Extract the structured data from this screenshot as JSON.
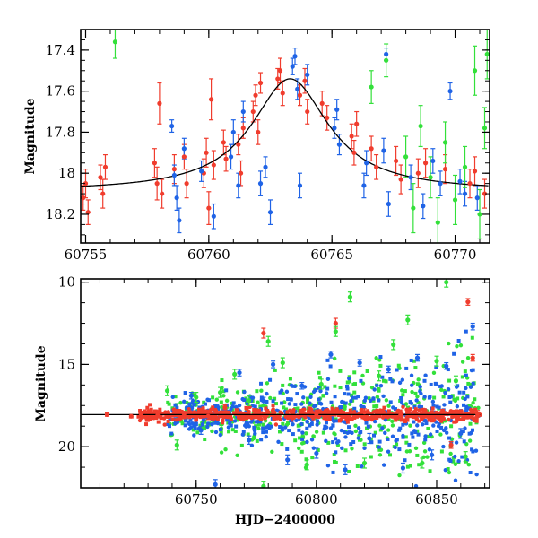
{
  "colors": {
    "red": "#f03c2d",
    "blue": "#1f63e6",
    "green": "#33e03a",
    "model": "#000000"
  },
  "chart_data": [
    {
      "type": "scatter",
      "title": "",
      "xlabel": "",
      "ylabel": "Magnitude",
      "xlim": [
        60754.8,
        60771.4
      ],
      "ylim": [
        18.34,
        17.3
      ],
      "y_inverted": true,
      "grid": false,
      "legend": "none",
      "xticks": [
        60755,
        60760,
        60765,
        60770
      ],
      "xtick_labels": [
        "60755",
        "60760",
        "60765",
        "60770"
      ],
      "yticks": [
        17.4,
        17.6,
        17.8,
        18,
        18.2
      ],
      "ytick_labels": [
        "17.4",
        "17.6",
        "17.8",
        "18",
        "18.2"
      ],
      "model_curve": {
        "peak_x": 60763.3,
        "peak_mag": 17.54,
        "baseline_mag": 18.09,
        "width": 1.9
      },
      "series": [
        {
          "color": "red",
          "points": [
            {
              "x": 60754.9,
              "y": 18.12,
              "e": 0.06
            },
            {
              "x": 60755.0,
              "y": 18.05,
              "e": 0.07
            },
            {
              "x": 60755.1,
              "y": 18.19,
              "e": 0.06
            },
            {
              "x": 60755.6,
              "y": 18.02,
              "e": 0.06
            },
            {
              "x": 60755.7,
              "y": 18.1,
              "e": 0.07
            },
            {
              "x": 60755.8,
              "y": 17.97,
              "e": 0.06
            },
            {
              "x": 60757.8,
              "y": 17.95,
              "e": 0.07
            },
            {
              "x": 60757.9,
              "y": 18.05,
              "e": 0.08
            },
            {
              "x": 60758.0,
              "y": 17.66,
              "e": 0.1
            },
            {
              "x": 60758.1,
              "y": 18.1,
              "e": 0.07
            },
            {
              "x": 60758.6,
              "y": 17.98,
              "e": 0.07
            },
            {
              "x": 60759.0,
              "y": 17.92,
              "e": 0.06
            },
            {
              "x": 60759.1,
              "y": 18.05,
              "e": 0.07
            },
            {
              "x": 60759.8,
              "y": 18.0,
              "e": 0.07
            },
            {
              "x": 60759.9,
              "y": 17.9,
              "e": 0.07
            },
            {
              "x": 60760.0,
              "y": 18.17,
              "e": 0.08
            },
            {
              "x": 60760.1,
              "y": 17.64,
              "e": 0.1
            },
            {
              "x": 60760.2,
              "y": 17.96,
              "e": 0.07
            },
            {
              "x": 60760.6,
              "y": 17.85,
              "e": 0.06
            },
            {
              "x": 60760.7,
              "y": 17.93,
              "e": 0.06
            },
            {
              "x": 60761.2,
              "y": 17.86,
              "e": 0.05
            },
            {
              "x": 60761.3,
              "y": 18.0,
              "e": 0.06
            },
            {
              "x": 60761.4,
              "y": 17.78,
              "e": 0.05
            },
            {
              "x": 60761.8,
              "y": 17.7,
              "e": 0.05
            },
            {
              "x": 60761.9,
              "y": 17.62,
              "e": 0.05
            },
            {
              "x": 60762.0,
              "y": 17.8,
              "e": 0.06
            },
            {
              "x": 60762.1,
              "y": 17.56,
              "e": 0.05
            },
            {
              "x": 60762.8,
              "y": 17.54,
              "e": 0.05
            },
            {
              "x": 60762.9,
              "y": 17.5,
              "e": 0.06
            },
            {
              "x": 60763.0,
              "y": 17.61,
              "e": 0.06
            },
            {
              "x": 60763.7,
              "y": 17.62,
              "e": 0.05
            },
            {
              "x": 60763.9,
              "y": 17.55,
              "e": 0.06
            },
            {
              "x": 60764.0,
              "y": 17.7,
              "e": 0.06
            },
            {
              "x": 60764.6,
              "y": 17.66,
              "e": 0.06
            },
            {
              "x": 60764.8,
              "y": 17.73,
              "e": 0.06
            },
            {
              "x": 60765.8,
              "y": 17.82,
              "e": 0.06
            },
            {
              "x": 60765.9,
              "y": 17.9,
              "e": 0.06
            },
            {
              "x": 60766.0,
              "y": 17.76,
              "e": 0.06
            },
            {
              "x": 60766.6,
              "y": 17.88,
              "e": 0.06
            },
            {
              "x": 60766.8,
              "y": 17.97,
              "e": 0.06
            },
            {
              "x": 60767.6,
              "y": 17.94,
              "e": 0.07
            },
            {
              "x": 60767.8,
              "y": 18.03,
              "e": 0.07
            },
            {
              "x": 60768.5,
              "y": 18.0,
              "e": 0.07
            },
            {
              "x": 60768.8,
              "y": 17.95,
              "e": 0.07
            },
            {
              "x": 60769.6,
              "y": 17.98,
              "e": 0.07
            },
            {
              "x": 60770.6,
              "y": 18.05,
              "e": 0.07
            },
            {
              "x": 60770.8,
              "y": 17.99,
              "e": 0.07
            },
            {
              "x": 60771.2,
              "y": 18.1,
              "e": 0.07
            }
          ]
        },
        {
          "color": "blue",
          "points": [
            {
              "x": 60758.5,
              "y": 17.77,
              "e": 0.03
            },
            {
              "x": 60758.6,
              "y": 18.01,
              "e": 0.05
            },
            {
              "x": 60758.7,
              "y": 18.12,
              "e": 0.06
            },
            {
              "x": 60758.8,
              "y": 18.23,
              "e": 0.06
            },
            {
              "x": 60759.0,
              "y": 17.88,
              "e": 0.05
            },
            {
              "x": 60759.7,
              "y": 17.99,
              "e": 0.05
            },
            {
              "x": 60760.2,
              "y": 18.21,
              "e": 0.06
            },
            {
              "x": 60760.9,
              "y": 17.92,
              "e": 0.06
            },
            {
              "x": 60761.0,
              "y": 17.8,
              "e": 0.06
            },
            {
              "x": 60761.2,
              "y": 18.06,
              "e": 0.06
            },
            {
              "x": 60761.4,
              "y": 17.7,
              "e": 0.05
            },
            {
              "x": 60762.1,
              "y": 18.05,
              "e": 0.06
            },
            {
              "x": 60762.3,
              "y": 17.97,
              "e": 0.05
            },
            {
              "x": 60762.5,
              "y": 18.19,
              "e": 0.06
            },
            {
              "x": 60763.4,
              "y": 17.48,
              "e": 0.04
            },
            {
              "x": 60763.5,
              "y": 17.43,
              "e": 0.04
            },
            {
              "x": 60763.6,
              "y": 17.59,
              "e": 0.05
            },
            {
              "x": 60763.7,
              "y": 18.06,
              "e": 0.06
            },
            {
              "x": 60764.0,
              "y": 17.52,
              "e": 0.05
            },
            {
              "x": 60765.1,
              "y": 17.78,
              "e": 0.05
            },
            {
              "x": 60765.2,
              "y": 17.69,
              "e": 0.05
            },
            {
              "x": 60765.3,
              "y": 17.86,
              "e": 0.05
            },
            {
              "x": 60766.3,
              "y": 18.06,
              "e": 0.06
            },
            {
              "x": 60766.4,
              "y": 17.95,
              "e": 0.06
            },
            {
              "x": 60767.1,
              "y": 17.89,
              "e": 0.06
            },
            {
              "x": 60767.3,
              "y": 18.15,
              "e": 0.06
            },
            {
              "x": 60768.2,
              "y": 18.02,
              "e": 0.06
            },
            {
              "x": 60768.7,
              "y": 18.16,
              "e": 0.06
            },
            {
              "x": 60769.1,
              "y": 17.94,
              "e": 0.06
            },
            {
              "x": 60769.4,
              "y": 18.05,
              "e": 0.06
            },
            {
              "x": 60769.8,
              "y": 17.6,
              "e": 0.04
            },
            {
              "x": 60770.2,
              "y": 18.04,
              "e": 0.06
            },
            {
              "x": 60770.4,
              "y": 18.1,
              "e": 0.06
            },
            {
              "x": 60770.9,
              "y": 18.12,
              "e": 0.06
            },
            {
              "x": 60767.2,
              "y": 17.42,
              "e": 0.03
            }
          ]
        },
        {
          "color": "green",
          "points": [
            {
              "x": 60756.2,
              "y": 17.36,
              "e": 0.08
            },
            {
              "x": 60766.6,
              "y": 17.58,
              "e": 0.08
            },
            {
              "x": 60767.2,
              "y": 17.45,
              "e": 0.08
            },
            {
              "x": 60768.0,
              "y": 17.92,
              "e": 0.1
            },
            {
              "x": 60768.3,
              "y": 18.17,
              "e": 0.12
            },
            {
              "x": 60768.6,
              "y": 17.77,
              "e": 0.1
            },
            {
              "x": 60769.0,
              "y": 18.02,
              "e": 0.1
            },
            {
              "x": 60769.3,
              "y": 18.24,
              "e": 0.12
            },
            {
              "x": 60769.6,
              "y": 17.85,
              "e": 0.1
            },
            {
              "x": 60770.0,
              "y": 18.13,
              "e": 0.12
            },
            {
              "x": 60770.4,
              "y": 17.97,
              "e": 0.1
            },
            {
              "x": 60770.8,
              "y": 17.5,
              "e": 0.12
            },
            {
              "x": 60771.0,
              "y": 18.2,
              "e": 0.12
            },
            {
              "x": 60771.2,
              "y": 17.78,
              "e": 0.1
            },
            {
              "x": 60771.3,
              "y": 17.42,
              "e": 0.12
            }
          ]
        }
      ]
    },
    {
      "type": "scatter",
      "title": "",
      "xlabel": "HJD−2400000",
      "ylabel": "Magnitude",
      "xlim": [
        60702,
        60872
      ],
      "ylim": [
        22.5,
        9.8
      ],
      "y_inverted": true,
      "grid": false,
      "legend": "none",
      "xticks": [
        60750,
        60800,
        60850
      ],
      "xtick_labels": [
        "60750",
        "60800",
        "60850"
      ],
      "yticks": [
        10,
        15,
        20
      ],
      "ytick_labels": [
        "10",
        "15",
        "20"
      ],
      "model_curve": {
        "from_x": 60702,
        "to_x": 60868,
        "baseline_mag": 18.05
      },
      "series": [
        {
          "color": "red",
          "points": [
            {
              "x": 60713,
              "y": 18.05,
              "e": 0.1
            },
            {
              "x": 60723,
              "y": 18.15,
              "e": 0.1
            },
            {
              "x": 60727,
              "y": 17.98,
              "e": 0.1
            },
            {
              "x": 60734,
              "y": 18.1,
              "e": 0.15
            },
            {
              "x": 60745,
              "y": 18.0,
              "e": 0.15
            },
            {
              "x": 60755,
              "y": 18.15,
              "e": 0.2
            },
            {
              "x": 60762,
              "y": 17.6,
              "e": 0.15
            },
            {
              "x": 60778,
              "y": 13.1,
              "e": 0.3
            },
            {
              "x": 60790,
              "y": 18.25,
              "e": 0.2
            },
            {
              "x": 60800,
              "y": 18.0,
              "e": 0.2
            },
            {
              "x": 60808,
              "y": 12.5,
              "e": 0.3
            },
            {
              "x": 60820,
              "y": 17.9,
              "e": 0.2
            },
            {
              "x": 60835,
              "y": 18.1,
              "e": 0.2
            },
            {
              "x": 60848,
              "y": 18.3,
              "e": 0.2
            },
            {
              "x": 60856,
              "y": 19.9,
              "e": 0.2
            },
            {
              "x": 60863,
              "y": 11.2,
              "e": 0.2
            },
            {
              "x": 60865,
              "y": 14.6,
              "e": 0.2
            },
            {
              "x": 60867,
              "y": 18.0,
              "e": 0.2
            }
          ]
        },
        {
          "color": "blue",
          "points": [
            {
              "x": 60748,
              "y": 16.9,
              "e": 0.2
            },
            {
              "x": 60752,
              "y": 19.0,
              "e": 0.25
            },
            {
              "x": 60758,
              "y": 22.3,
              "e": 0.3
            },
            {
              "x": 60768,
              "y": 15.5,
              "e": 0.2
            },
            {
              "x": 60772,
              "y": 19.6,
              "e": 0.25
            },
            {
              "x": 60778,
              "y": 17.2,
              "e": 0.2
            },
            {
              "x": 60782,
              "y": 15.0,
              "e": 0.2
            },
            {
              "x": 60788,
              "y": 20.8,
              "e": 0.3
            },
            {
              "x": 60794,
              "y": 16.3,
              "e": 0.2
            },
            {
              "x": 60800,
              "y": 20.4,
              "e": 0.3
            },
            {
              "x": 60806,
              "y": 14.4,
              "e": 0.2
            },
            {
              "x": 60812,
              "y": 21.4,
              "e": 0.3
            },
            {
              "x": 60818,
              "y": 14.9,
              "e": 0.2
            },
            {
              "x": 60822,
              "y": 19.5,
              "e": 0.3
            },
            {
              "x": 60830,
              "y": 15.3,
              "e": 0.2
            },
            {
              "x": 60836,
              "y": 21.3,
              "e": 0.3
            },
            {
              "x": 60842,
              "y": 14.6,
              "e": 0.2
            },
            {
              "x": 60848,
              "y": 20.5,
              "e": 0.3
            },
            {
              "x": 60854,
              "y": 15.1,
              "e": 0.2
            },
            {
              "x": 60860,
              "y": 19.2,
              "e": 0.3
            },
            {
              "x": 60865,
              "y": 12.7,
              "e": 0.2
            }
          ]
        },
        {
          "color": "green",
          "points": [
            {
              "x": 60738,
              "y": 16.6,
              "e": 0.3
            },
            {
              "x": 60742,
              "y": 19.9,
              "e": 0.3
            },
            {
              "x": 60750,
              "y": 17.0,
              "e": 0.3
            },
            {
              "x": 60760,
              "y": 16.7,
              "e": 0.3
            },
            {
              "x": 60766,
              "y": 15.6,
              "e": 0.3
            },
            {
              "x": 60772,
              "y": 17.2,
              "e": 0.3
            },
            {
              "x": 60778,
              "y": 22.4,
              "e": 0.3
            },
            {
              "x": 60780,
              "y": 13.6,
              "e": 0.3
            },
            {
              "x": 60786,
              "y": 14.9,
              "e": 0.3
            },
            {
              "x": 60796,
              "y": 21.1,
              "e": 0.3
            },
            {
              "x": 60802,
              "y": 16.2,
              "e": 0.3
            },
            {
              "x": 60808,
              "y": 13.0,
              "e": 0.3
            },
            {
              "x": 60814,
              "y": 10.9,
              "e": 0.3
            },
            {
              "x": 60820,
              "y": 21.0,
              "e": 0.3
            },
            {
              "x": 60826,
              "y": 15.7,
              "e": 0.3
            },
            {
              "x": 60832,
              "y": 13.8,
              "e": 0.3
            },
            {
              "x": 60838,
              "y": 12.3,
              "e": 0.3
            },
            {
              "x": 60844,
              "y": 21.0,
              "e": 0.3
            },
            {
              "x": 60850,
              "y": 14.8,
              "e": 0.3
            },
            {
              "x": 60854,
              "y": 10.0,
              "e": 0.3
            },
            {
              "x": 60858,
              "y": 16.0,
              "e": 0.3
            },
            {
              "x": 60862,
              "y": 20.6,
              "e": 0.3
            }
          ]
        }
      ]
    }
  ]
}
